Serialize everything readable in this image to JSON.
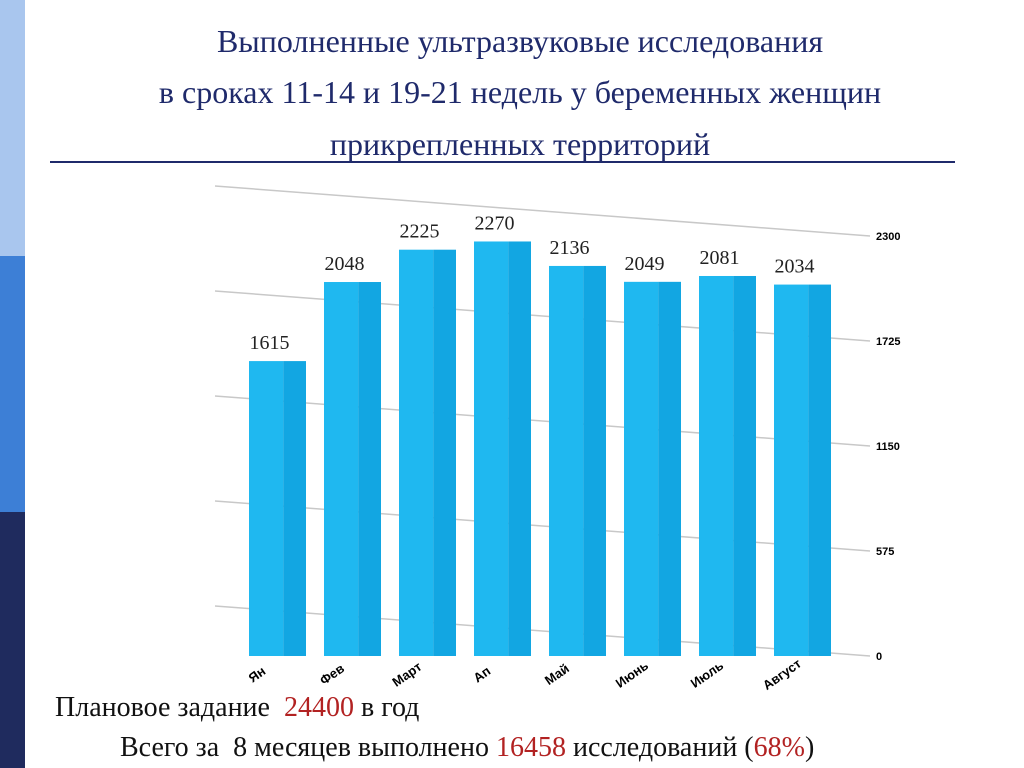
{
  "chart_data": {
    "type": "bar",
    "title": [
      "Выполненные ультразвуковые исследования",
      "в сроках 11-14 и 19-21 недель у беременных женщин",
      "прикрепленных территорий"
    ],
    "categories": [
      "Ян",
      "Фев",
      "Март",
      "Ап",
      "Май",
      "Июнь",
      "Июль",
      "Август"
    ],
    "values": [
      1615,
      2048,
      2225,
      2270,
      2136,
      2049,
      2081,
      2034
    ],
    "color": "#1fb8f0",
    "ylim": [
      0,
      2300
    ],
    "yticks": [
      0,
      575,
      1150,
      1725,
      2300
    ],
    "grid": true
  },
  "footer": {
    "line1": [
      "Плановое задание",
      "24400",
      "в год"
    ],
    "line2": [
      "Всего за  8 месяцев выполнено",
      "16458",
      "исследований (",
      "68%",
      ")"
    ]
  }
}
